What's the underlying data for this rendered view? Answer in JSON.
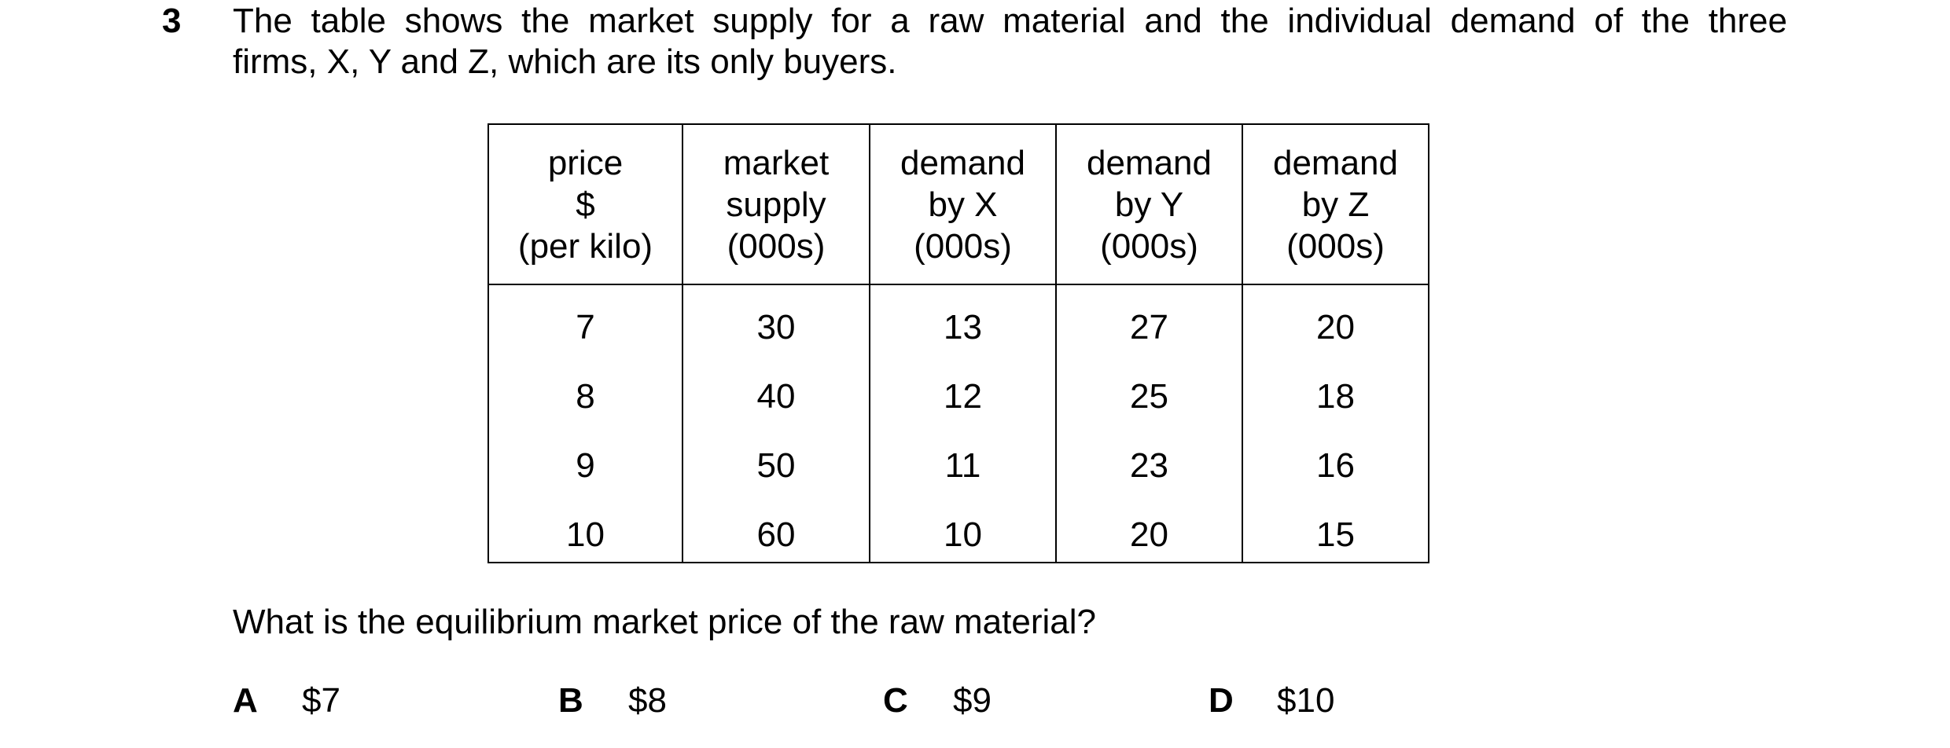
{
  "question": {
    "number": "3",
    "intro_lines": [
      "The table shows the market supply for a raw material and the individual demand of the three",
      "firms, X, Y and Z, which are its only buyers."
    ],
    "prompt": "What is the equilibrium market price of the raw material?",
    "options": [
      {
        "letter": "A",
        "text": "$7"
      },
      {
        "letter": "B",
        "text": "$8"
      },
      {
        "letter": "C",
        "text": "$9"
      },
      {
        "letter": "D",
        "text": "$10"
      }
    ]
  },
  "table": {
    "header": [
      [
        "price",
        "$",
        "(per kilo)"
      ],
      [
        "market",
        "supply",
        "(000s)"
      ],
      [
        "demand",
        "by X",
        "(000s)"
      ],
      [
        "demand",
        "by Y",
        "(000s)"
      ],
      [
        "demand",
        "by Z",
        "(000s)"
      ]
    ],
    "rows": [
      [
        7,
        30,
        13,
        27,
        20
      ],
      [
        8,
        40,
        12,
        25,
        18
      ],
      [
        9,
        50,
        11,
        23,
        16
      ],
      [
        10,
        60,
        10,
        20,
        15
      ]
    ]
  }
}
